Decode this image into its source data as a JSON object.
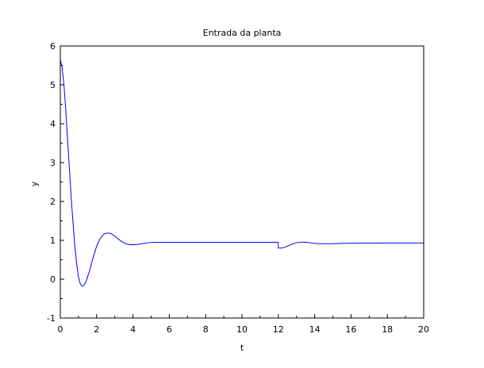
{
  "window": {
    "background": "#ffffff"
  },
  "chart_data": {
    "type": "line",
    "title": "Entrada da planta",
    "xlabel": "t",
    "ylabel": "y",
    "xlim": [
      0,
      20
    ],
    "ylim": [
      -1,
      6
    ],
    "xticks": [
      0,
      2,
      4,
      6,
      8,
      10,
      12,
      14,
      16,
      18,
      20
    ],
    "yticks": [
      -1,
      0,
      1,
      2,
      3,
      4,
      5,
      6
    ],
    "grid": false,
    "legend": "none",
    "series": [
      {
        "color": "#0000ff",
        "points": [
          [
            0.0,
            5.65
          ],
          [
            0.1,
            5.45
          ],
          [
            0.2,
            5.0
          ],
          [
            0.3,
            4.35
          ],
          [
            0.4,
            3.6
          ],
          [
            0.5,
            2.85
          ],
          [
            0.6,
            2.1
          ],
          [
            0.7,
            1.45
          ],
          [
            0.8,
            0.85
          ],
          [
            0.9,
            0.4
          ],
          [
            1.0,
            0.05
          ],
          [
            1.1,
            -0.12
          ],
          [
            1.2,
            -0.18
          ],
          [
            1.3,
            -0.16
          ],
          [
            1.4,
            -0.08
          ],
          [
            1.6,
            0.2
          ],
          [
            1.8,
            0.55
          ],
          [
            2.0,
            0.85
          ],
          [
            2.2,
            1.05
          ],
          [
            2.4,
            1.16
          ],
          [
            2.6,
            1.19
          ],
          [
            2.8,
            1.17
          ],
          [
            3.0,
            1.11
          ],
          [
            3.2,
            1.03
          ],
          [
            3.4,
            0.96
          ],
          [
            3.6,
            0.91
          ],
          [
            3.8,
            0.89
          ],
          [
            4.0,
            0.885
          ],
          [
            4.2,
            0.89
          ],
          [
            4.4,
            0.905
          ],
          [
            4.6,
            0.92
          ],
          [
            4.8,
            0.935
          ],
          [
            5.0,
            0.945
          ],
          [
            5.5,
            0.95
          ],
          [
            6.0,
            0.95
          ],
          [
            8.0,
            0.95
          ],
          [
            10.0,
            0.95
          ],
          [
            11.99,
            0.95
          ],
          [
            12.0,
            0.8
          ],
          [
            12.2,
            0.8
          ],
          [
            12.4,
            0.83
          ],
          [
            12.6,
            0.87
          ],
          [
            12.8,
            0.91
          ],
          [
            13.0,
            0.94
          ],
          [
            13.3,
            0.955
          ],
          [
            13.6,
            0.945
          ],
          [
            13.9,
            0.925
          ],
          [
            14.2,
            0.915
          ],
          [
            14.6,
            0.91
          ],
          [
            15.0,
            0.912
          ],
          [
            15.5,
            0.92
          ],
          [
            16.0,
            0.925
          ],
          [
            18.0,
            0.93
          ],
          [
            20.0,
            0.93
          ]
        ]
      }
    ]
  }
}
